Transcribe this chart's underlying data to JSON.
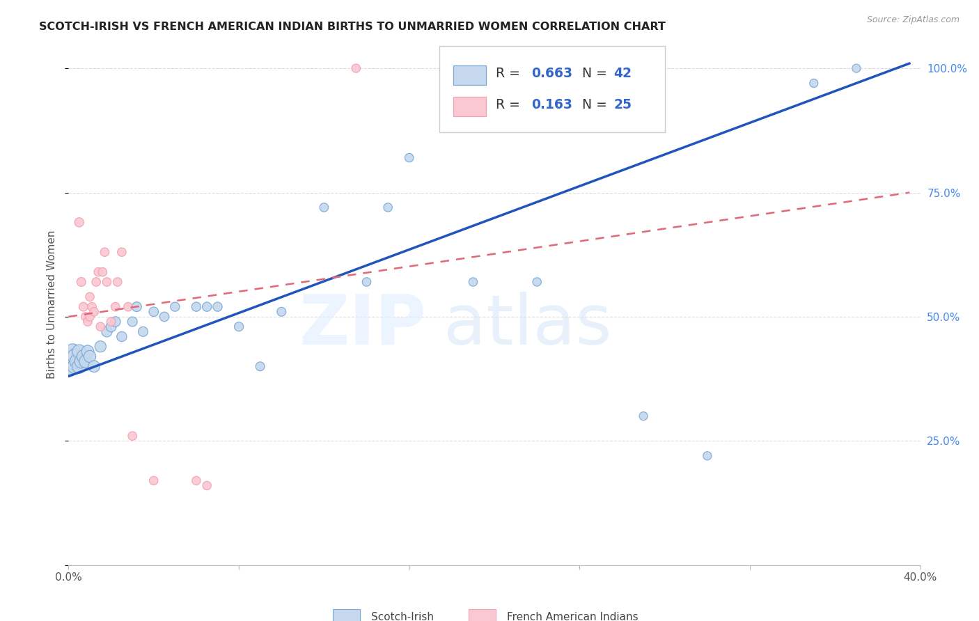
{
  "title": "SCOTCH-IRISH VS FRENCH AMERICAN INDIAN BIRTHS TO UNMARRIED WOMEN CORRELATION CHART",
  "source": "Source: ZipAtlas.com",
  "ylabel": "Births to Unmarried Women",
  "x_min": 0.0,
  "x_max": 0.4,
  "y_min": 0.0,
  "y_max": 1.05,
  "grid_color": "#dddddd",
  "background_color": "#ffffff",
  "watermark_zip": "ZIP",
  "watermark_atlas": "atlas",
  "legend_R1": "0.663",
  "legend_N1": "42",
  "legend_R2": "0.163",
  "legend_N2": "25",
  "blue_edge": "#7aaad4",
  "pink_edge": "#f4a0b0",
  "blue_fill": "#c5d8ee",
  "pink_fill": "#fac8d2",
  "line_blue": "#2255bb",
  "line_pink": "#e06878",
  "scotch_irish_x": [
    0.001,
    0.001,
    0.002,
    0.002,
    0.003,
    0.003,
    0.004,
    0.005,
    0.005,
    0.006,
    0.007,
    0.008,
    0.009,
    0.01,
    0.012,
    0.015,
    0.018,
    0.02,
    0.022,
    0.025,
    0.03,
    0.032,
    0.035,
    0.04,
    0.045,
    0.05,
    0.06,
    0.065,
    0.07,
    0.08,
    0.09,
    0.1,
    0.12,
    0.14,
    0.15,
    0.16,
    0.19,
    0.22,
    0.27,
    0.3,
    0.35,
    0.37
  ],
  "scotch_irish_y": [
    0.4,
    0.42,
    0.41,
    0.43,
    0.42,
    0.4,
    0.41,
    0.4,
    0.43,
    0.41,
    0.42,
    0.41,
    0.43,
    0.42,
    0.4,
    0.44,
    0.47,
    0.48,
    0.49,
    0.46,
    0.49,
    0.52,
    0.47,
    0.51,
    0.5,
    0.52,
    0.52,
    0.52,
    0.52,
    0.48,
    0.4,
    0.51,
    0.72,
    0.57,
    0.72,
    0.82,
    0.57,
    0.57,
    0.3,
    0.22,
    0.97,
    1.0
  ],
  "scotch_irish_size": [
    300,
    280,
    260,
    250,
    240,
    230,
    220,
    210,
    200,
    195,
    185,
    175,
    165,
    155,
    145,
    135,
    120,
    115,
    110,
    105,
    100,
    100,
    100,
    95,
    95,
    90,
    90,
    90,
    90,
    88,
    85,
    85,
    80,
    80,
    80,
    80,
    78,
    78,
    75,
    75,
    75,
    75
  ],
  "french_ai_x": [
    0.005,
    0.006,
    0.007,
    0.008,
    0.009,
    0.01,
    0.01,
    0.011,
    0.012,
    0.013,
    0.014,
    0.015,
    0.016,
    0.017,
    0.018,
    0.02,
    0.022,
    0.023,
    0.025,
    0.028,
    0.03,
    0.04,
    0.06,
    0.065,
    0.135
  ],
  "french_ai_y": [
    0.69,
    0.57,
    0.52,
    0.5,
    0.49,
    0.5,
    0.54,
    0.52,
    0.51,
    0.57,
    0.59,
    0.48,
    0.59,
    0.63,
    0.57,
    0.49,
    0.52,
    0.57,
    0.63,
    0.52,
    0.26,
    0.17,
    0.17,
    0.16,
    1.0
  ],
  "french_ai_size": [
    90,
    85,
    82,
    80,
    80,
    80,
    80,
    80,
    80,
    80,
    80,
    80,
    80,
    80,
    80,
    80,
    80,
    80,
    80,
    80,
    80,
    78,
    78,
    78,
    78
  ],
  "blue_line_x0": 0.0,
  "blue_line_y0": 0.38,
  "blue_line_x1": 0.395,
  "blue_line_y1": 1.01,
  "pink_line_x0": 0.0,
  "pink_line_y0": 0.5,
  "pink_line_x1": 0.395,
  "pink_line_y1": 0.75
}
